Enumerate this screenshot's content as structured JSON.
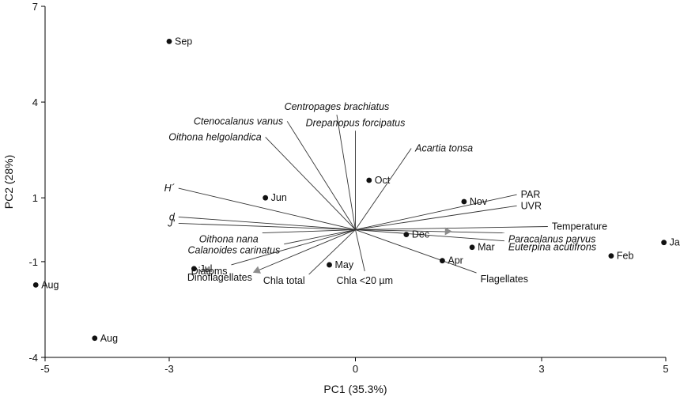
{
  "chart_data": {
    "type": "scatter",
    "title": "",
    "xlabel": "PC1 (35.3%)",
    "ylabel": "PC2 (28%)",
    "xlim": [
      -5,
      5
    ],
    "ylim": [
      -4,
      7
    ],
    "xticks": [
      -5,
      -3,
      0,
      3,
      5
    ],
    "yticks": [
      -4,
      -1,
      1,
      4,
      7
    ],
    "grid": false,
    "points": [
      {
        "label": "Sep",
        "x": -3.0,
        "y": 5.9
      },
      {
        "label": "Jun",
        "x": -1.45,
        "y": 1.0
      },
      {
        "label": "Oct",
        "x": 0.22,
        "y": 1.55
      },
      {
        "label": "Nov",
        "x": 1.75,
        "y": 0.88
      },
      {
        "label": "Dec",
        "x": 0.82,
        "y": -0.15
      },
      {
        "label": "Jan",
        "x": 4.97,
        "y": -0.4
      },
      {
        "label": "Feb",
        "x": 4.12,
        "y": -0.82
      },
      {
        "label": "Mar",
        "x": 1.88,
        "y": -0.55
      },
      {
        "label": "Apr",
        "x": 1.4,
        "y": -0.97
      },
      {
        "label": "May",
        "x": -0.42,
        "y": -1.1
      },
      {
        "label": "Jul",
        "x": -2.6,
        "y": -1.22
      },
      {
        "label": "Aug",
        "x": -5.15,
        "y": -1.73
      },
      {
        "label": "Aug",
        "x": -4.2,
        "y": -3.4
      }
    ],
    "vectors": [
      {
        "label": "Ctenocalanus vanus",
        "italic": true,
        "x": -1.1,
        "y": 3.4
      },
      {
        "label": "Centropages brachiatus",
        "italic": true,
        "x": -0.3,
        "y": 3.6
      },
      {
        "label": "Drepanopus forcipatus",
        "italic": true,
        "x": 0.0,
        "y": 3.1
      },
      {
        "label": "Oithona helgolandica",
        "italic": true,
        "x": -1.45,
        "y": 2.9
      },
      {
        "label": "Acartia tonsa",
        "italic": true,
        "x": 0.9,
        "y": 2.55
      },
      {
        "label": "H´",
        "italic": true,
        "x": -2.85,
        "y": 1.3
      },
      {
        "label": "PAR",
        "italic": false,
        "x": 2.6,
        "y": 1.1
      },
      {
        "label": "UVR",
        "italic": false,
        "x": 2.6,
        "y": 0.75
      },
      {
        "label": "d",
        "italic": true,
        "x": -2.85,
        "y": 0.4
      },
      {
        "label": "J'",
        "italic": true,
        "x": -2.85,
        "y": 0.2
      },
      {
        "label": "Temperature",
        "italic": false,
        "x": 3.1,
        "y": 0.1
      },
      {
        "label": "Paracalanus parvus",
        "italic": true,
        "x": 2.4,
        "y": -0.1
      },
      {
        "label": "Euterpina acutifrons",
        "italic": true,
        "x": 2.4,
        "y": -0.35
      },
      {
        "label": "Oithona nana",
        "italic": true,
        "x": -1.5,
        "y": -0.1
      },
      {
        "label": "Calanoides carinatus",
        "italic": true,
        "x": -1.15,
        "y": -0.45
      },
      {
        "label": "Diatoms",
        "italic": false,
        "x": -2.0,
        "y": -1.1
      },
      {
        "label": "Dinoflagellates",
        "italic": false,
        "x": -1.6,
        "y": -1.3
      },
      {
        "label": "Chla total",
        "italic": false,
        "x": -0.75,
        "y": -1.4
      },
      {
        "label": "Chla <20 µm",
        "italic": false,
        "x": 0.15,
        "y": -1.3
      },
      {
        "label": "Flagellates",
        "italic": false,
        "x": 1.95,
        "y": -1.35
      }
    ],
    "arrow_markers": [
      {
        "x": -1.6,
        "y": -1.3
      },
      {
        "x": 1.5,
        "y": -0.05
      }
    ],
    "colors": {
      "points": "#111111",
      "vectors": "#333333",
      "arrows": "#8c8c8c",
      "axes": "#000000"
    }
  }
}
